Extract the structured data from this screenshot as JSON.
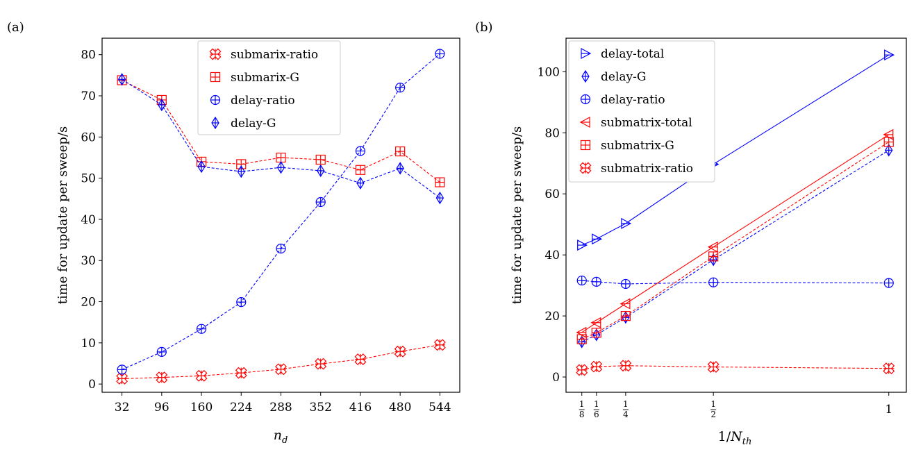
{
  "chart_data": [
    {
      "type": "line",
      "panel_label": "(a)",
      "title": "",
      "xlabel": "n_d",
      "ylabel": "time for update per sweep/s",
      "categories": [
        "32",
        "96",
        "160",
        "224",
        "288",
        "352",
        "416",
        "480",
        "544"
      ],
      "x": [
        32,
        96,
        160,
        224,
        288,
        352,
        416,
        480,
        544
      ],
      "xlim": [
        0,
        576
      ],
      "ylim": [
        -2,
        84
      ],
      "yticks": [
        0,
        10,
        20,
        30,
        40,
        50,
        60,
        70,
        80
      ],
      "legend_position": "top-center",
      "series": [
        {
          "name": "submarix-ratio",
          "color": "#ff0000",
          "marker": "ratio-x",
          "linestyle": "dashed",
          "values": [
            1.3,
            1.6,
            2.0,
            2.7,
            3.6,
            4.9,
            6.0,
            7.9,
            9.5
          ]
        },
        {
          "name": "submarix-G",
          "color": "#ff0000",
          "marker": "square",
          "linestyle": "dashed",
          "values": [
            73.8,
            69.0,
            54.0,
            53.4,
            55.0,
            54.5,
            52.0,
            56.5,
            49.0
          ]
        },
        {
          "name": "delay-ratio",
          "color": "#0000ff",
          "marker": "circle",
          "linestyle": "dashed",
          "values": [
            3.5,
            7.8,
            13.4,
            19.9,
            32.9,
            44.2,
            56.6,
            72.0,
            80.2
          ]
        },
        {
          "name": "delay-G",
          "color": "#0000ff",
          "marker": "diamond",
          "linestyle": "dashed",
          "values": [
            74.0,
            67.8,
            52.8,
            51.6,
            52.6,
            51.8,
            48.8,
            52.4,
            45.2
          ]
        }
      ]
    },
    {
      "type": "line",
      "panel_label": "(b)",
      "title": "",
      "xlabel": "1/N_th",
      "ylabel": "time for update per sweep/s",
      "x": [
        0.125,
        0.1667,
        0.25,
        0.5,
        1
      ],
      "xtick_labels": [
        {
          "value": 0.125,
          "num": "1",
          "den": "8"
        },
        {
          "value": 0.1667,
          "num": "1",
          "den": "6"
        },
        {
          "value": 0.25,
          "num": "1",
          "den": "4"
        },
        {
          "value": 0.5,
          "num": "1",
          "den": "2"
        },
        {
          "value": 1,
          "num": "",
          "den": "",
          "plain": "1"
        }
      ],
      "xlim": [
        0.08,
        1.05
      ],
      "ylim": [
        -5,
        111
      ],
      "yticks": [
        0,
        20,
        40,
        60,
        80,
        100
      ],
      "legend_position": "top-left",
      "series": [
        {
          "name": "delay-total",
          "color": "#0000ff",
          "marker": "tri-right",
          "linestyle": "solid",
          "values": [
            43.2,
            45.2,
            50.3,
            69.7,
            105.5
          ]
        },
        {
          "name": "delay-G",
          "color": "#0000ff",
          "marker": "diamond",
          "linestyle": "dashed",
          "values": [
            11.5,
            13.8,
            19.5,
            38.4,
            74.3
          ]
        },
        {
          "name": "delay-ratio",
          "color": "#0000ff",
          "marker": "circle",
          "linestyle": "dashed",
          "values": [
            31.6,
            31.2,
            30.5,
            31.0,
            30.8
          ]
        },
        {
          "name": "submatrix-total",
          "color": "#ff0000",
          "marker": "tri-left",
          "linestyle": "solid",
          "values": [
            14.6,
            17.8,
            24.0,
            42.6,
            79.4
          ]
        },
        {
          "name": "submatrix-G",
          "color": "#ff0000",
          "marker": "square",
          "linestyle": "dashed",
          "values": [
            12.4,
            14.5,
            20.0,
            39.5,
            77.0
          ]
        },
        {
          "name": "submatrix-ratio",
          "color": "#ff0000",
          "marker": "ratio-x",
          "linestyle": "dashed",
          "values": [
            2.3,
            3.4,
            3.7,
            3.3,
            2.8
          ]
        }
      ]
    }
  ]
}
